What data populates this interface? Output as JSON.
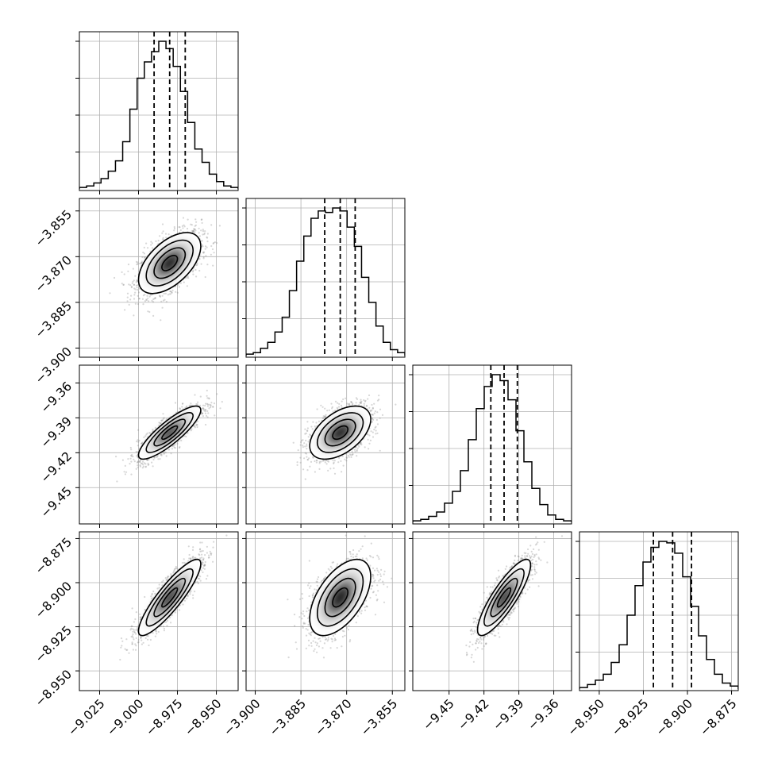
{
  "chart_data": {
    "type": "corner",
    "n_params": 4,
    "grid": true,
    "quantile_lines": "dashed",
    "params": [
      {
        "center": -8.98,
        "q16": -8.99,
        "q84": -8.97,
        "range": [
          -9.038,
          -8.936
        ],
        "ticks": [
          -9.025,
          -9.0,
          -8.975,
          -8.95
        ],
        "tick_labels": [
          "−9.025",
          "−9.000",
          "−8.975",
          "−8.950"
        ],
        "hist": [
          0.01,
          0.02,
          0.04,
          0.07,
          0.12,
          0.19,
          0.32,
          0.54,
          0.75,
          0.86,
          0.93,
          1.0,
          0.95,
          0.83,
          0.66,
          0.45,
          0.27,
          0.18,
          0.1,
          0.05,
          0.02,
          0.01
        ]
      },
      {
        "center": -3.8721,
        "q16": -3.8772,
        "q84": -3.8672,
        "range": [
          -3.903,
          -3.8509
        ],
        "ticks": [
          -3.9,
          -3.885,
          -3.87,
          -3.855
        ],
        "tick_labels": [
          "−3.900",
          "−3.885",
          "−3.870",
          "−3.855"
        ],
        "hist": [
          0.01,
          0.02,
          0.05,
          0.09,
          0.16,
          0.26,
          0.44,
          0.64,
          0.81,
          0.93,
          0.98,
          0.97,
          1.0,
          0.98,
          0.87,
          0.74,
          0.53,
          0.36,
          0.2,
          0.09,
          0.04,
          0.02
        ]
      },
      {
        "center": -9.4027,
        "q16": -9.4141,
        "q84": -9.3913,
        "range": [
          -9.4812,
          -9.3447
        ],
        "ticks": [
          -9.45,
          -9.42,
          -9.39,
          -9.36
        ],
        "tick_labels": [
          "−9.45",
          "−9.42",
          "−9.39",
          "−9.36"
        ],
        "hist": [
          0.01,
          0.02,
          0.04,
          0.07,
          0.13,
          0.21,
          0.35,
          0.56,
          0.77,
          0.92,
          1.0,
          0.96,
          0.83,
          0.62,
          0.41,
          0.23,
          0.12,
          0.05,
          0.02,
          0.01
        ]
      },
      {
        "center": -8.9084,
        "q16": -8.9193,
        "q84": -8.8977,
        "range": [
          -8.9612,
          -8.8712
        ],
        "ticks": [
          -8.95,
          -8.925,
          -8.9,
          -8.875
        ],
        "tick_labels": [
          "−8.950",
          "−8.925",
          "−8.900",
          "−8.875"
        ],
        "hist": [
          0.01,
          0.03,
          0.06,
          0.1,
          0.18,
          0.3,
          0.5,
          0.7,
          0.86,
          0.96,
          1.0,
          0.99,
          0.92,
          0.76,
          0.56,
          0.36,
          0.2,
          0.1,
          0.04,
          0.02
        ]
      }
    ],
    "correlations": [
      [
        1,
        0.55,
        0.85,
        0.88
      ],
      [
        0.55,
        1,
        0.5,
        0.55
      ],
      [
        0.85,
        0.5,
        1,
        0.85
      ],
      [
        0.88,
        0.55,
        0.85,
        1
      ]
    ],
    "contour_levels_sigma": [
      0.5,
      1.0,
      1.5,
      2.0
    ]
  }
}
